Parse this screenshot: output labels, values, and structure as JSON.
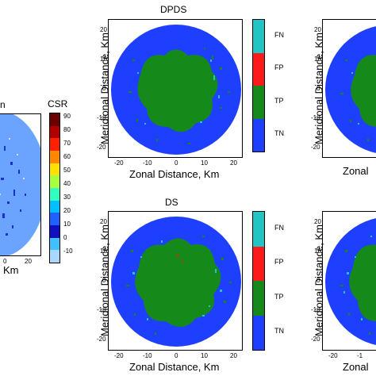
{
  "panels": {
    "top_middle": {
      "title": "DPDS",
      "ylabel": "Meridional Distance, Km",
      "xlabel": "Zonal Distance, Km",
      "xticks": [
        "-20",
        "-10",
        "0",
        "10",
        "20"
      ],
      "yticks": [
        "20",
        "10",
        "0",
        "-10",
        "-20"
      ]
    },
    "bottom_middle": {
      "title": "DS",
      "ylabel": "Meridional Distance, Km",
      "xlabel": "Zonal Distance, Km",
      "xticks": [
        "-20",
        "-10",
        "0",
        "10",
        "20"
      ],
      "yticks": [
        "20",
        "10",
        "0",
        "-10",
        "-20"
      ]
    },
    "top_right": {
      "ylabel": "Meridional Distance, Km",
      "xlabel": "Zonal",
      "yticks": [
        "20",
        "10",
        "0",
        "-10",
        "-20"
      ]
    },
    "bottom_right": {
      "ylabel": "Meridional Distance, Km",
      "xlabel": "Zonal",
      "xticks": [
        "-20",
        "-1"
      ],
      "yticks": [
        "20",
        "10",
        "0",
        "-10",
        "-20"
      ]
    },
    "left": {
      "title_fragment": "n",
      "xlabel_fragment": "Km",
      "xticks": [
        "0",
        "20"
      ]
    }
  },
  "class_colorbar": {
    "labels": [
      "FN",
      "FP",
      "TP",
      "TN"
    ],
    "colors": [
      "#22c4c4",
      "#ff1a1a",
      "#158a1a",
      "#1f3fff"
    ]
  },
  "csr_colorbar": {
    "title": "CSR",
    "ticks": [
      "90",
      "80",
      "70",
      "60",
      "50",
      "40",
      "30",
      "20",
      "10",
      "0",
      "-10"
    ],
    "colors": [
      "#6a0000",
      "#b00000",
      "#ff2000",
      "#ff8800",
      "#ffe000",
      "#a8ff40",
      "#30ffc0",
      "#00c0ff",
      "#2060ff",
      "#1010c0",
      "#40c0ff",
      "#a8d8ff"
    ]
  },
  "colors": {
    "background_blue": "#1f3fff",
    "tp_green": "#158a1a",
    "fp_red": "#ff1a1a",
    "fn_cyan": "#22c4c4",
    "left_bg": "#6aa4ff"
  }
}
